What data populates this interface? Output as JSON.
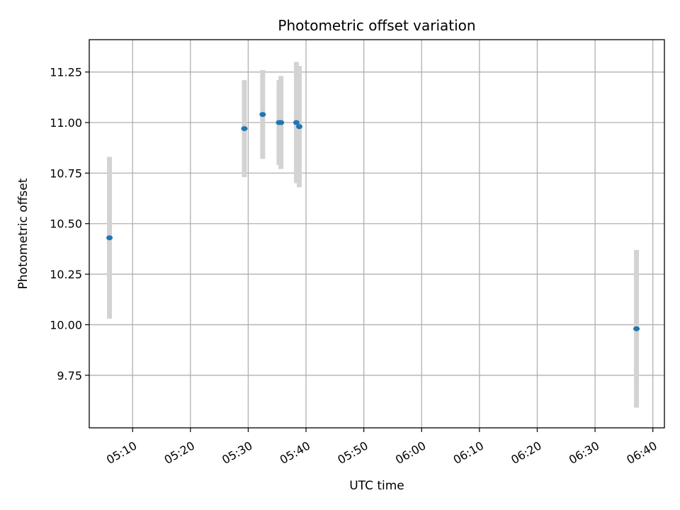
{
  "chart_data": {
    "type": "scatter",
    "title": "Photometric offset variation",
    "xlabel": "UTC time",
    "ylabel": "Photometric offset",
    "xlim": [
      "05:02:30",
      "06:42:00"
    ],
    "ylim": [
      9.49,
      11.41
    ],
    "grid": true,
    "x_ticks": [
      "05:10",
      "05:20",
      "05:30",
      "05:40",
      "05:50",
      "06:00",
      "06:10",
      "06:20",
      "06:30",
      "06:40"
    ],
    "y_ticks": [
      "9.75",
      "10.00",
      "10.25",
      "10.50",
      "10.75",
      "11.00",
      "11.25"
    ],
    "colors": {
      "points": "#1f77b4",
      "errorbars": "#d3d3d3",
      "grid": "#b0b0b0"
    },
    "series": [
      {
        "x": [
          "05:06:00",
          "05:29:20",
          "05:32:30",
          "05:35:20",
          "05:35:40",
          "05:38:20",
          "05:38:50",
          "06:37:10"
        ],
        "y": [
          10.43,
          10.97,
          11.04,
          11.0,
          11.0,
          11.0,
          10.98,
          9.98
        ],
        "yerr": [
          0.4,
          0.24,
          0.22,
          0.21,
          0.23,
          0.3,
          0.3,
          0.39
        ]
      }
    ]
  }
}
